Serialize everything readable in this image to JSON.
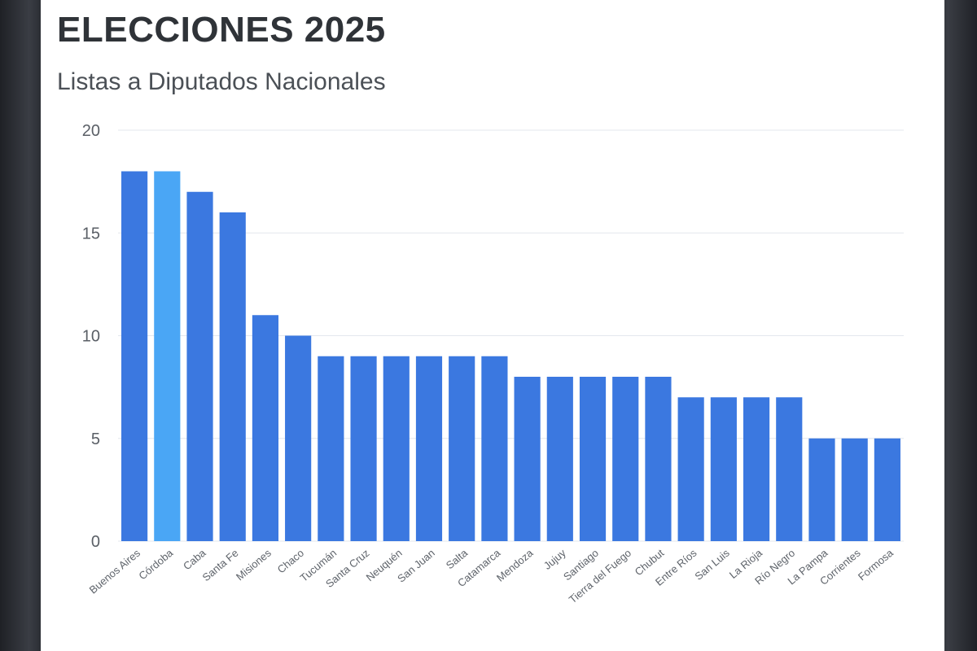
{
  "header": {
    "title": "ELECCIONES 2025",
    "subtitle": "Listas a Diputados Nacionales"
  },
  "colors": {
    "bar": "#3b78e0",
    "bar_highlight": "#4aa6f5",
    "grid": "#e3e7ee",
    "tick_text": "#5a5f66"
  },
  "chart_data": {
    "type": "bar",
    "title": "ELECCIONES 2025",
    "subtitle": "Listas a Diputados Nacionales",
    "xlabel": "",
    "ylabel": "",
    "ylim": [
      0,
      20
    ],
    "yticks": [
      0,
      5,
      10,
      15,
      20
    ],
    "grid": true,
    "highlight_category": "Córdoba",
    "categories": [
      "Buenos Aires",
      "Córdoba",
      "Caba",
      "Santa Fe",
      "Misiones",
      "Chaco",
      "Tucumán",
      "Santa Cruz",
      "Neuquén",
      "San Juan",
      "Salta",
      "Catamarca",
      "Mendoza",
      "Jujuy",
      "Santiago",
      "Tierra del Fuego",
      "Chubut",
      "Entre Ríos",
      "San Luis",
      "La Rioja",
      "Río Negro",
      "La Pampa",
      "Corrientes",
      "Formosa"
    ],
    "values": [
      18,
      18,
      17,
      16,
      11,
      10,
      9,
      9,
      9,
      9,
      9,
      9,
      8,
      8,
      8,
      8,
      8,
      7,
      7,
      7,
      7,
      5,
      5,
      5
    ]
  }
}
